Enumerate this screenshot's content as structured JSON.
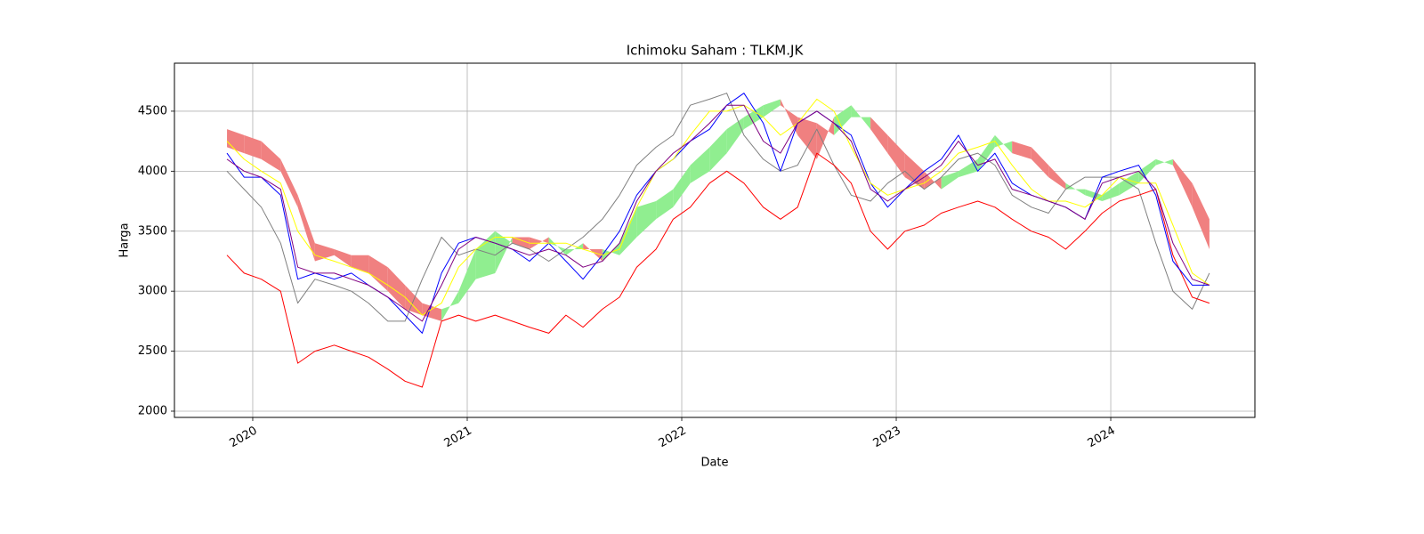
{
  "chart_data": {
    "type": "line",
    "title": "Ichimoku Saham : TLKM.JK",
    "x_label": "Date",
    "y_label": "Harga",
    "x": [
      2019.88,
      2019.96,
      2020.04,
      2020.13,
      2020.21,
      2020.29,
      2020.38,
      2020.46,
      2020.54,
      2020.63,
      2020.71,
      2020.79,
      2020.88,
      2020.96,
      2021.04,
      2021.13,
      2021.21,
      2021.29,
      2021.38,
      2021.46,
      2021.54,
      2021.63,
      2021.71,
      2021.79,
      2021.88,
      2021.96,
      2022.04,
      2022.13,
      2022.21,
      2022.29,
      2022.38,
      2022.46,
      2022.54,
      2022.63,
      2022.71,
      2022.79,
      2022.88,
      2022.96,
      2023.04,
      2023.13,
      2023.21,
      2023.29,
      2023.38,
      2023.46,
      2023.54,
      2023.63,
      2023.71,
      2023.79,
      2023.88,
      2023.96,
      2024.04,
      2024.13,
      2024.21,
      2024.29,
      2024.38,
      2024.46
    ],
    "cloud": {
      "up_color": "#90ee90",
      "down_color": "#f08080",
      "span_a": [
        4200,
        4150,
        4100,
        4000,
        3700,
        3250,
        3300,
        3200,
        3150,
        3000,
        2850,
        2800,
        2750,
        3000,
        3350,
        3500,
        3400,
        3350,
        3450,
        3300,
        3400,
        3250,
        3400,
        3700,
        3750,
        3850,
        4050,
        4200,
        4350,
        4450,
        4550,
        4600,
        4300,
        4100,
        4450,
        4550,
        4350,
        4150,
        3950,
        3850,
        3950,
        4000,
        4100,
        4300,
        4150,
        4100,
        3950,
        3850,
        3850,
        3800,
        3900,
        4000,
        4100,
        4050,
        3700,
        3350
      ],
      "span_b": [
        4350,
        4300,
        4250,
        4100,
        3800,
        3400,
        3350,
        3300,
        3300,
        3200,
        3050,
        2900,
        2850,
        2900,
        3100,
        3150,
        3450,
        3450,
        3400,
        3350,
        3350,
        3350,
        3300,
        3450,
        3600,
        3700,
        3900,
        4000,
        4150,
        4350,
        4450,
        4550,
        4450,
        4400,
        4300,
        4450,
        4450,
        4300,
        4150,
        4000,
        3850,
        3950,
        4000,
        4200,
        4250,
        4200,
        4050,
        3900,
        3800,
        3750,
        3800,
        3900,
        4050,
        4100,
        3900,
        3600
      ]
    },
    "series": [
      {
        "color": "gray",
        "values": [
          4000,
          3850,
          3700,
          3400,
          2900,
          3100,
          3050,
          3000,
          2900,
          2750,
          2750,
          3100,
          3450,
          3300,
          3350,
          3300,
          3400,
          3350,
          3250,
          3350,
          3450,
          3600,
          3800,
          4050,
          4200,
          4300,
          4550,
          4600,
          4650,
          4300,
          4100,
          4000,
          4050,
          4350,
          4050,
          3800,
          3750,
          3900,
          4000,
          3850,
          3950,
          4100,
          4150,
          4050,
          3800,
          3700,
          3650,
          3850,
          3950,
          3950,
          3950,
          3850,
          3400,
          3000,
          2850,
          3150
        ]
      },
      {
        "color": "red",
        "values": [
          3300,
          3150,
          3100,
          3000,
          2400,
          2500,
          2550,
          2500,
          2450,
          2350,
          2250,
          2200,
          2750,
          2800,
          2750,
          2800,
          2750,
          2700,
          2650,
          2800,
          2700,
          2850,
          2950,
          3200,
          3350,
          3600,
          3700,
          3900,
          4000,
          3900,
          3700,
          3600,
          3700,
          4150,
          4050,
          3900,
          3500,
          3350,
          3500,
          3550,
          3650,
          3700,
          3750,
          3700,
          3600,
          3500,
          3450,
          3350,
          3500,
          3650,
          3750,
          3800,
          3850,
          3300,
          2950,
          2900
        ]
      },
      {
        "color": "blue",
        "values": [
          4150,
          3950,
          3950,
          3800,
          3100,
          3150,
          3100,
          3150,
          3050,
          2950,
          2800,
          2650,
          3150,
          3400,
          3450,
          3400,
          3350,
          3250,
          3400,
          3250,
          3100,
          3300,
          3500,
          3800,
          4000,
          4100,
          4250,
          4350,
          4550,
          4650,
          4400,
          4000,
          4400,
          4500,
          4400,
          4300,
          3900,
          3700,
          3850,
          4000,
          4100,
          4300,
          4000,
          4150,
          3900,
          3800,
          3750,
          3700,
          3600,
          3950,
          4000,
          4050,
          3800,
          3250,
          3050,
          3050
        ]
      },
      {
        "color": "yellow",
        "values": [
          4250,
          4100,
          4000,
          3900,
          3500,
          3300,
          3250,
          3200,
          3150,
          3050,
          2950,
          2800,
          2900,
          3200,
          3350,
          3450,
          3450,
          3400,
          3400,
          3400,
          3350,
          3300,
          3350,
          3700,
          4000,
          4100,
          4300,
          4500,
          4500,
          4550,
          4450,
          4300,
          4400,
          4600,
          4500,
          4200,
          3900,
          3800,
          3850,
          3900,
          4000,
          4150,
          4200,
          4250,
          4050,
          3850,
          3750,
          3750,
          3700,
          3800,
          3950,
          3900,
          3900,
          3550,
          3150,
          3050
        ]
      },
      {
        "color": "purple",
        "values": [
          4100,
          4000,
          3950,
          3850,
          3200,
          3150,
          3150,
          3100,
          3050,
          2950,
          2850,
          2750,
          3050,
          3350,
          3450,
          3400,
          3350,
          3300,
          3350,
          3300,
          3200,
          3250,
          3400,
          3750,
          4000,
          4150,
          4250,
          4400,
          4550,
          4550,
          4250,
          4150,
          4400,
          4500,
          4400,
          4250,
          3850,
          3750,
          3850,
          3950,
          4050,
          4250,
          4050,
          4100,
          3850,
          3800,
          3750,
          3700,
          3600,
          3900,
          3950,
          4000,
          3850,
          3400,
          3100,
          3050
        ]
      }
    ],
    "xlim": [
      2019.635,
      2024.672
    ],
    "xticks": [
      2020,
      2021,
      2022,
      2023,
      2024
    ],
    "ylim": [
      1948,
      4900
    ],
    "yticks": [
      2000,
      2500,
      3000,
      3500,
      4000,
      4500
    ],
    "grid": true
  }
}
